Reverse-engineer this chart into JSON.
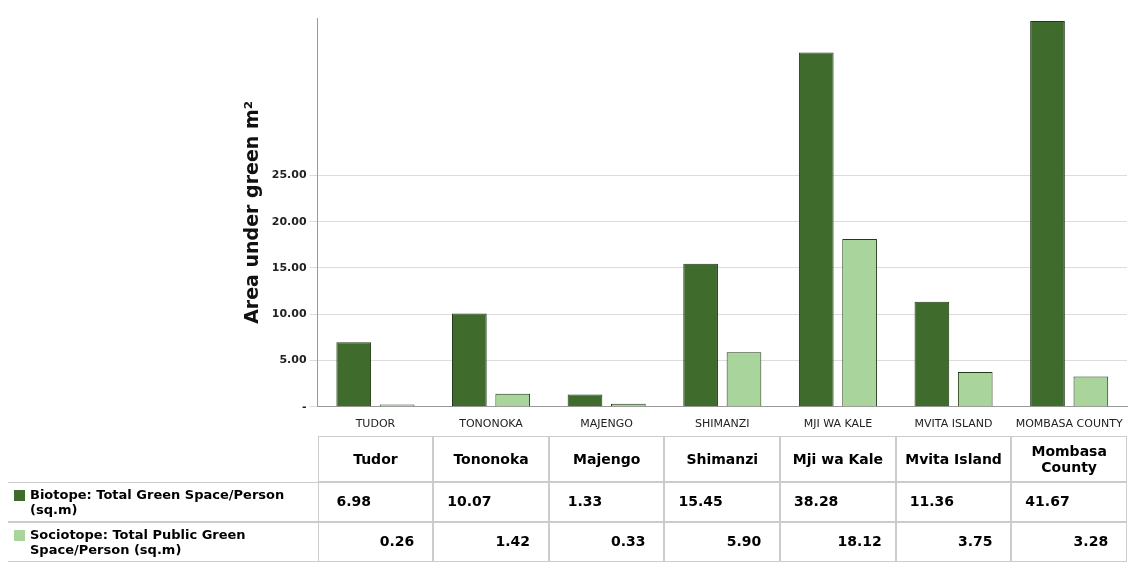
{
  "chart_data": {
    "type": "bar",
    "ylabel": "Area under green m²",
    "categories": [
      "TUDOR",
      "TONONOKA",
      "MAJENGO",
      "SHIMANZI",
      "MJI WA KALE",
      "MVITA ISLAND",
      "MOMBASA COUNTY"
    ],
    "series": [
      {
        "name": "Biotope: Total Green Space/Person (sq.m)",
        "color": "#3f6b2c",
        "values": [
          6.98,
          10.07,
          1.33,
          15.45,
          38.28,
          11.36,
          41.67
        ],
        "value_labels": [
          "6.98",
          "10.07",
          "1.33",
          "15.45",
          "38.28",
          "11.36",
          "41.67"
        ]
      },
      {
        "name": "Sociotope: Total Public Green Space/Person (sq.m)",
        "color": "#a9d49b",
        "values": [
          0.26,
          1.42,
          0.33,
          5.9,
          18.12,
          3.75,
          3.28
        ],
        "value_labels": [
          "0.26",
          "1.42",
          "0.33",
          "5.90",
          "18.12",
          "3.75",
          "3.28"
        ]
      }
    ],
    "ylim": [
      0,
      42
    ],
    "yticks": [
      {
        "value": 0,
        "label": "-"
      },
      {
        "value": 5,
        "label": "5.00"
      },
      {
        "value": 10,
        "label": "10.00"
      },
      {
        "value": 15,
        "label": "15.00"
      },
      {
        "value": 20,
        "label": "20.00"
      },
      {
        "value": 25,
        "label": "25.00"
      }
    ],
    "grid": "y",
    "legend": "bottom",
    "annotations": [
      "Tudor",
      "Tononoka",
      "Majengo",
      "Shimanzi",
      "Mji wa Kale",
      "Mvita Island",
      "Mombasa County"
    ]
  }
}
